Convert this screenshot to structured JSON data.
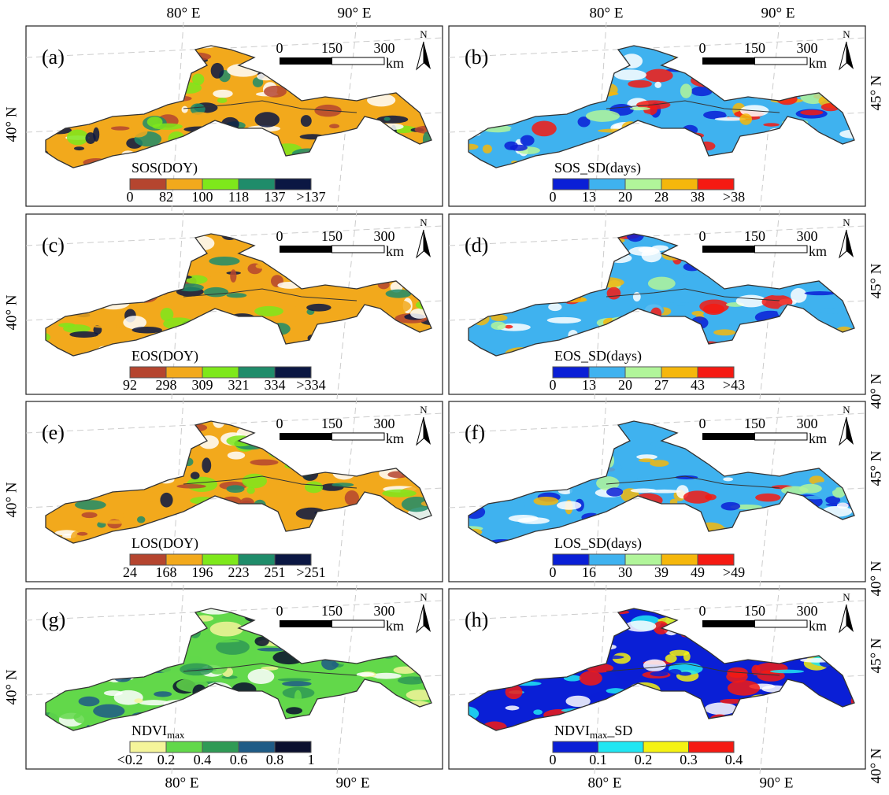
{
  "grid_labels": {
    "lon": [
      "80° E",
      "90° E"
    ],
    "lat": [
      "40° N",
      "45° N"
    ]
  },
  "scale_bar": {
    "ticks": [
      "0",
      "150",
      "300"
    ],
    "unit": "km",
    "north": "N"
  },
  "panels": [
    {
      "label": "(a)",
      "title": "SOS(DOY)",
      "labels": [
        "0",
        "82",
        "100",
        "118",
        "137",
        ">137"
      ],
      "colors": [
        "#b5452f",
        "#f2a91c",
        "#7ee81b",
        "#1f8c6a",
        "#0b1743"
      ]
    },
    {
      "label": "(b)",
      "title": "SOS_SD(days)",
      "labels": [
        "0",
        "13",
        "20",
        "28",
        "38",
        ">38"
      ],
      "colors": [
        "#0a1fd6",
        "#3fb2ef",
        "#b1f59a",
        "#f5b70c",
        "#f51a12"
      ]
    },
    {
      "label": "(c)",
      "title": "EOS(DOY)",
      "labels": [
        "92",
        "298",
        "309",
        "321",
        "334",
        ">334"
      ],
      "colors": [
        "#b5452f",
        "#f2a91c",
        "#7ee81b",
        "#1f8c6a",
        "#0b1743"
      ]
    },
    {
      "label": "(d)",
      "title": "EOS_SD(days)",
      "labels": [
        "0",
        "13",
        "20",
        "27",
        "43",
        ">43"
      ],
      "colors": [
        "#0a1fd6",
        "#3fb2ef",
        "#b1f59a",
        "#f5b70c",
        "#f51a12"
      ]
    },
    {
      "label": "(e)",
      "title": "LOS(DOY)",
      "labels": [
        "24",
        "168",
        "196",
        "223",
        "251",
        ">251"
      ],
      "colors": [
        "#b5452f",
        "#f2a91c",
        "#7ee81b",
        "#1f8c6a",
        "#0b1743"
      ]
    },
    {
      "label": "(f)",
      "title": "LOS_SD(days)",
      "labels": [
        "0",
        "16",
        "30",
        "39",
        "49",
        ">49"
      ],
      "colors": [
        "#0a1fd6",
        "#3fb2ef",
        "#b1f59a",
        "#f5b70c",
        "#f51a12"
      ]
    },
    {
      "label": "(g)",
      "title": "NDVI",
      "title_sub": "max",
      "labels": [
        "<0.2",
        "0.2",
        "0.4",
        "0.6",
        "0.8",
        "1"
      ],
      "colors": [
        "#f5f59a",
        "#62d84a",
        "#2f9a55",
        "#1e5b86",
        "#0a0f2e"
      ]
    },
    {
      "label": "(h)",
      "title": "NDVI",
      "title_sub": "max",
      "title_suffix": "_SD",
      "labels": [
        "0",
        "0.1",
        "0.2",
        "0.3",
        "0.4"
      ],
      "colors": [
        "#0a1fd6",
        "#20e6f2",
        "#f5f212",
        "#f51a12"
      ]
    }
  ]
}
